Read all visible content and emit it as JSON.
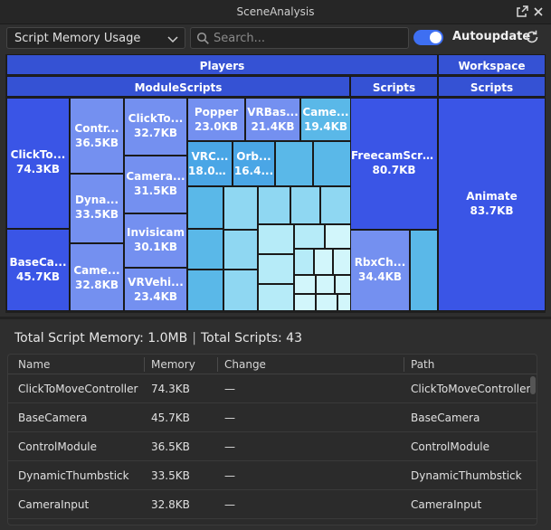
{
  "window": {
    "title": "SceneAnalysis"
  },
  "toolbar": {
    "view_select": "Script Memory Usage",
    "search_placeholder": "Search...",
    "autoupdate_label": "Autoupdate",
    "autoupdate_on": true
  },
  "treemap": {
    "groups": {
      "players": "Players",
      "workspace": "Workspace",
      "module_scripts": "ModuleScripts",
      "scripts_players": "Scripts",
      "scripts_workspace": "Scripts"
    },
    "tiles": [
      {
        "name": "ClickTo...",
        "size": "74.3KB"
      },
      {
        "name": "BaseCa...",
        "size": "45.7KB"
      },
      {
        "name": "Contr...",
        "size": "36.5KB"
      },
      {
        "name": "Dyna...",
        "size": "33.5KB"
      },
      {
        "name": "Came...",
        "size": "32.8KB"
      },
      {
        "name": "ClickTo...",
        "size": "32.7KB"
      },
      {
        "name": "Camera...",
        "size": "31.5KB"
      },
      {
        "name": "Invisicam",
        "size": "30.1KB"
      },
      {
        "name": "VRVehi...",
        "size": "23.4KB"
      },
      {
        "name": "Popper",
        "size": "23.0KB"
      },
      {
        "name": "VRBas...",
        "size": "21.4KB"
      },
      {
        "name": "Came...",
        "size": "19.4KB"
      },
      {
        "name": "VRC...",
        "size": "18.0KB"
      },
      {
        "name": "Orb...",
        "size": "16.4..."
      },
      {
        "name": "FreecamScript",
        "size": "80.7KB"
      },
      {
        "name": "RbxCh...",
        "size": "34.4KB"
      },
      {
        "name": "Animate",
        "size": "83.7KB"
      }
    ]
  },
  "summary": {
    "memory": "Total Script Memory: 1.0MB",
    "separator": "|",
    "scripts": "Total Scripts: 43"
  },
  "table": {
    "columns": [
      "Name",
      "Memory",
      "Change",
      "Path"
    ],
    "rows": [
      [
        "ClickToMoveController",
        "74.3KB",
        "—",
        "ClickToMoveController"
      ],
      [
        "BaseCamera",
        "45.7KB",
        "—",
        "BaseCamera"
      ],
      [
        "ControlModule",
        "36.5KB",
        "—",
        "ControlModule"
      ],
      [
        "DynamicThumbstick",
        "33.5KB",
        "—",
        "DynamicThumbstick"
      ],
      [
        "CameraInput",
        "32.8KB",
        "—",
        "CameraInput"
      ]
    ]
  },
  "colors": {
    "accent": "#3e6ff2",
    "tile_dark": "#3a55e6",
    "tile_mid": "#7490f0",
    "tile_light": "#d2f6fb"
  }
}
